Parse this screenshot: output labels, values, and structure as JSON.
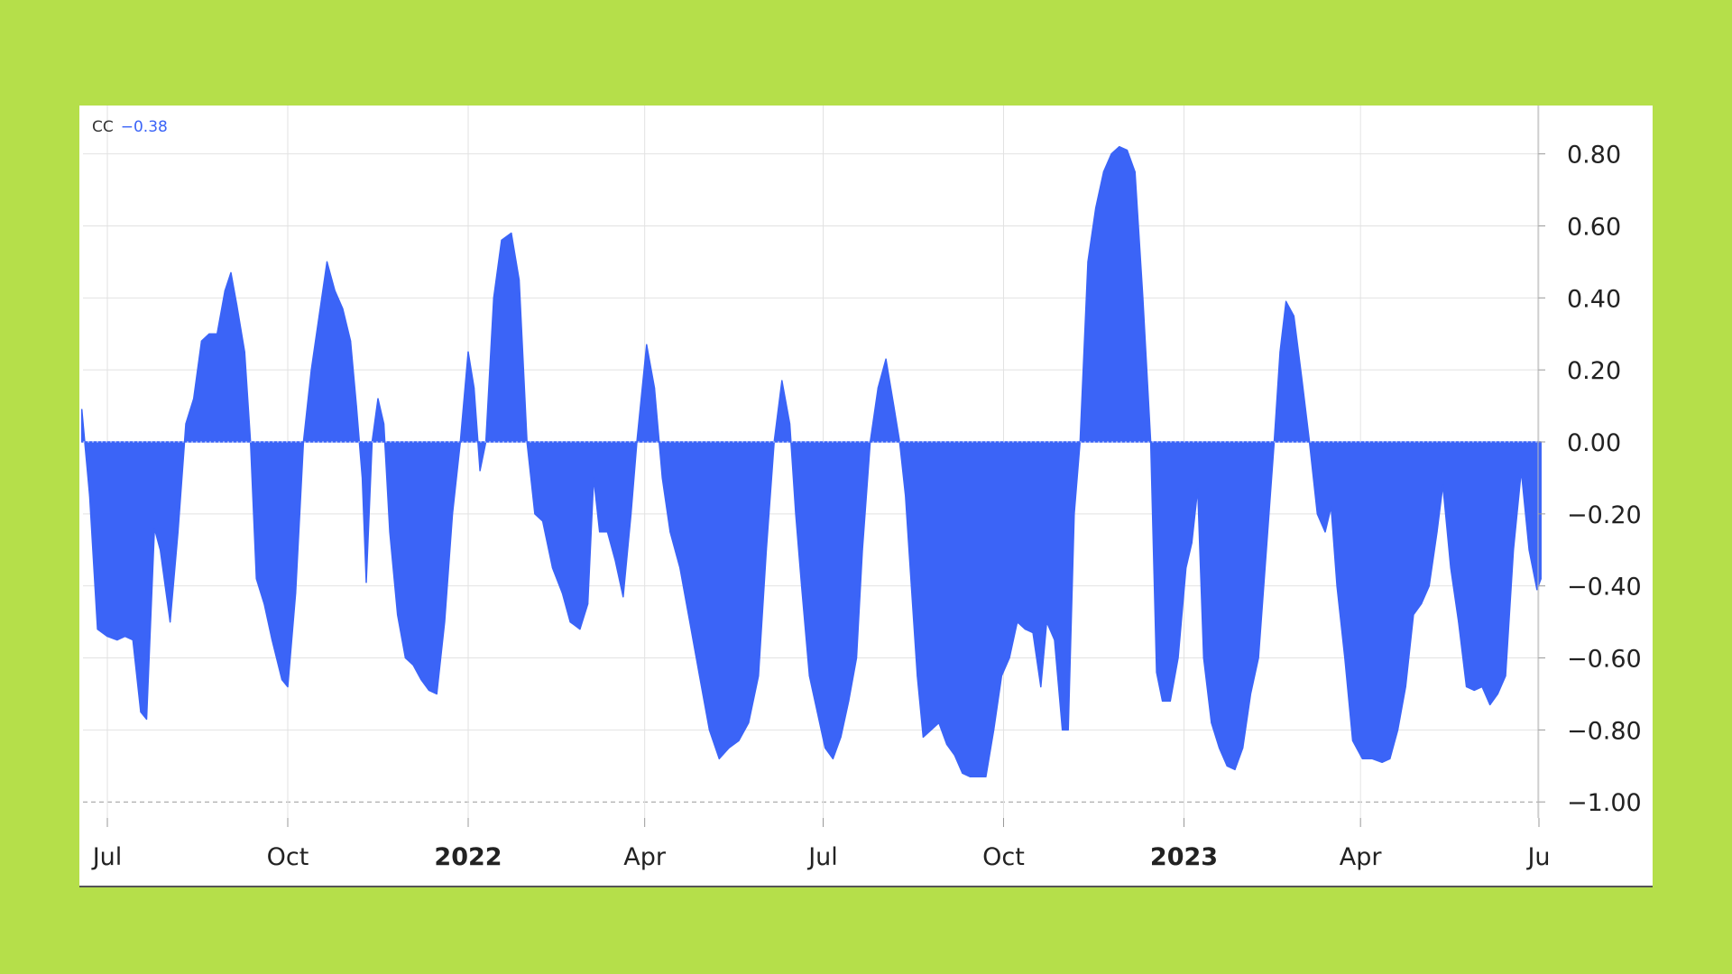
{
  "legend": {
    "name": "CC",
    "value": "−0.38"
  },
  "chart_data": {
    "type": "area",
    "ylim": [
      -1.0,
      0.9
    ],
    "grid": true,
    "y_ticks": [
      {
        "value": 0.8,
        "label": "0.80"
      },
      {
        "value": 0.6,
        "label": "0.60"
      },
      {
        "value": 0.4,
        "label": "0.40"
      },
      {
        "value": 0.2,
        "label": "0.20"
      },
      {
        "value": 0.0,
        "label": "0.00"
      },
      {
        "value": -0.2,
        "label": "−0.20"
      },
      {
        "value": -0.4,
        "label": "−0.40"
      },
      {
        "value": -0.6,
        "label": "−0.60"
      },
      {
        "value": -0.8,
        "label": "−0.80"
      },
      {
        "value": -1.0,
        "label": "−1.00"
      }
    ],
    "x_ticks": [
      {
        "date": "2021-07-01",
        "label": "Jul",
        "bold": false
      },
      {
        "date": "2021-10-01",
        "label": "Oct",
        "bold": false
      },
      {
        "date": "2022-01-01",
        "label": "2022",
        "bold": true
      },
      {
        "date": "2022-04-01",
        "label": "Apr",
        "bold": false
      },
      {
        "date": "2022-07-01",
        "label": "Jul",
        "bold": false
      },
      {
        "date": "2022-10-01",
        "label": "Oct",
        "bold": false
      },
      {
        "date": "2023-01-01",
        "label": "2023",
        "bold": true
      },
      {
        "date": "2023-04-01",
        "label": "Apr",
        "bold": false
      },
      {
        "date": "2023-07-01",
        "label": "Ju",
        "bold": false
      }
    ],
    "series": [
      {
        "color": "#3b64f7",
        "points": [
          [
            "2021-06-18",
            0.09
          ],
          [
            "2021-06-22",
            -0.15
          ],
          [
            "2021-06-26",
            -0.52
          ],
          [
            "2021-07-01",
            -0.54
          ],
          [
            "2021-07-06",
            -0.55
          ],
          [
            "2021-07-10",
            -0.54
          ],
          [
            "2021-07-14",
            -0.55
          ],
          [
            "2021-07-18",
            -0.75
          ],
          [
            "2021-07-21",
            -0.77
          ],
          [
            "2021-07-25",
            -0.24
          ],
          [
            "2021-07-28",
            -0.3
          ],
          [
            "2021-08-02",
            -0.5
          ],
          [
            "2021-08-06",
            -0.25
          ],
          [
            "2021-08-10",
            0.05
          ],
          [
            "2021-08-14",
            0.12
          ],
          [
            "2021-08-18",
            0.28
          ],
          [
            "2021-08-22",
            0.3
          ],
          [
            "2021-08-26",
            0.3
          ],
          [
            "2021-08-30",
            0.42
          ],
          [
            "2021-09-02",
            0.47
          ],
          [
            "2021-09-05",
            0.38
          ],
          [
            "2021-09-09",
            0.25
          ],
          [
            "2021-09-12",
            0.0
          ],
          [
            "2021-09-15",
            -0.38
          ],
          [
            "2021-09-19",
            -0.45
          ],
          [
            "2021-09-23",
            -0.55
          ],
          [
            "2021-09-28",
            -0.66
          ],
          [
            "2021-10-01",
            -0.68
          ],
          [
            "2021-10-05",
            -0.42
          ],
          [
            "2021-10-09",
            0.0
          ],
          [
            "2021-10-13",
            0.2
          ],
          [
            "2021-10-17",
            0.35
          ],
          [
            "2021-10-21",
            0.5
          ],
          [
            "2021-10-25",
            0.42
          ],
          [
            "2021-10-29",
            0.37
          ],
          [
            "2021-11-02",
            0.28
          ],
          [
            "2021-11-05",
            0.1
          ],
          [
            "2021-11-08",
            -0.1
          ],
          [
            "2021-11-10",
            -0.39
          ],
          [
            "2021-11-13",
            0.0
          ],
          [
            "2021-11-16",
            0.12
          ],
          [
            "2021-11-19",
            0.05
          ],
          [
            "2021-11-22",
            -0.25
          ],
          [
            "2021-11-26",
            -0.48
          ],
          [
            "2021-11-30",
            -0.6
          ],
          [
            "2021-12-04",
            -0.62
          ],
          [
            "2021-12-08",
            -0.66
          ],
          [
            "2021-12-12",
            -0.69
          ],
          [
            "2021-12-16",
            -0.7
          ],
          [
            "2021-12-20",
            -0.5
          ],
          [
            "2021-12-24",
            -0.2
          ],
          [
            "2021-12-28",
            0.0
          ],
          [
            "2022-01-01",
            0.25
          ],
          [
            "2022-01-04",
            0.15
          ],
          [
            "2022-01-07",
            -0.08
          ],
          [
            "2022-01-10",
            0.0
          ],
          [
            "2022-01-14",
            0.4
          ],
          [
            "2022-01-18",
            0.56
          ],
          [
            "2022-01-23",
            0.58
          ],
          [
            "2022-01-27",
            0.45
          ],
          [
            "2022-01-31",
            0.0
          ],
          [
            "2022-02-04",
            -0.2
          ],
          [
            "2022-02-08",
            -0.22
          ],
          [
            "2022-02-13",
            -0.35
          ],
          [
            "2022-02-18",
            -0.42
          ],
          [
            "2022-02-22",
            -0.5
          ],
          [
            "2022-02-27",
            -0.52
          ],
          [
            "2022-03-03",
            -0.45
          ],
          [
            "2022-03-06",
            -0.1
          ],
          [
            "2022-03-09",
            -0.25
          ],
          [
            "2022-03-13",
            -0.25
          ],
          [
            "2022-03-17",
            -0.33
          ],
          [
            "2022-03-21",
            -0.43
          ],
          [
            "2022-03-25",
            -0.2
          ],
          [
            "2022-03-28",
            0.0
          ],
          [
            "2022-04-02",
            0.27
          ],
          [
            "2022-04-06",
            0.15
          ],
          [
            "2022-04-10",
            -0.1
          ],
          [
            "2022-04-14",
            -0.25
          ],
          [
            "2022-04-19",
            -0.35
          ],
          [
            "2022-04-24",
            -0.5
          ],
          [
            "2022-04-29",
            -0.65
          ],
          [
            "2022-05-04",
            -0.8
          ],
          [
            "2022-05-09",
            -0.88
          ],
          [
            "2022-05-14",
            -0.85
          ],
          [
            "2022-05-19",
            -0.83
          ],
          [
            "2022-05-24",
            -0.78
          ],
          [
            "2022-05-29",
            -0.65
          ],
          [
            "2022-06-02",
            -0.3
          ],
          [
            "2022-06-06",
            0.0
          ],
          [
            "2022-06-10",
            0.17
          ],
          [
            "2022-06-14",
            0.05
          ],
          [
            "2022-06-17",
            -0.2
          ],
          [
            "2022-06-20",
            -0.4
          ],
          [
            "2022-06-24",
            -0.65
          ],
          [
            "2022-06-28",
            -0.75
          ],
          [
            "2022-07-02",
            -0.85
          ],
          [
            "2022-07-06",
            -0.88
          ],
          [
            "2022-07-10",
            -0.82
          ],
          [
            "2022-07-14",
            -0.72
          ],
          [
            "2022-07-18",
            -0.6
          ],
          [
            "2022-07-21",
            -0.3
          ],
          [
            "2022-07-25",
            0.0
          ],
          [
            "2022-07-29",
            0.15
          ],
          [
            "2022-08-02",
            0.23
          ],
          [
            "2022-08-06",
            0.1
          ],
          [
            "2022-08-09",
            0.0
          ],
          [
            "2022-08-12",
            -0.15
          ],
          [
            "2022-08-15",
            -0.4
          ],
          [
            "2022-08-18",
            -0.65
          ],
          [
            "2022-08-21",
            -0.82
          ],
          [
            "2022-08-25",
            -0.8
          ],
          [
            "2022-08-29",
            -0.78
          ],
          [
            "2022-09-02",
            -0.84
          ],
          [
            "2022-09-06",
            -0.87
          ],
          [
            "2022-09-10",
            -0.92
          ],
          [
            "2022-09-14",
            -0.93
          ],
          [
            "2022-09-18",
            -0.93
          ],
          [
            "2022-09-22",
            -0.93
          ],
          [
            "2022-09-26",
            -0.8
          ],
          [
            "2022-09-30",
            -0.65
          ],
          [
            "2022-10-04",
            -0.6
          ],
          [
            "2022-10-08",
            -0.5
          ],
          [
            "2022-10-12",
            -0.52
          ],
          [
            "2022-10-16",
            -0.53
          ],
          [
            "2022-10-20",
            -0.68
          ],
          [
            "2022-10-23",
            -0.5
          ],
          [
            "2022-10-27",
            -0.55
          ],
          [
            "2022-10-31",
            -0.8
          ],
          [
            "2022-11-03",
            -0.8
          ],
          [
            "2022-11-06",
            -0.2
          ],
          [
            "2022-11-09",
            0.0
          ],
          [
            "2022-11-13",
            0.5
          ],
          [
            "2022-11-17",
            0.65
          ],
          [
            "2022-11-21",
            0.75
          ],
          [
            "2022-11-25",
            0.8
          ],
          [
            "2022-11-29",
            0.82
          ],
          [
            "2022-12-03",
            0.81
          ],
          [
            "2022-12-07",
            0.75
          ],
          [
            "2022-12-11",
            0.4
          ],
          [
            "2022-12-15",
            0.0
          ],
          [
            "2022-12-18",
            -0.64
          ],
          [
            "2022-12-21",
            -0.72
          ],
          [
            "2022-12-25",
            -0.72
          ],
          [
            "2022-12-29",
            -0.6
          ],
          [
            "2023-01-02",
            -0.35
          ],
          [
            "2023-01-05",
            -0.28
          ],
          [
            "2023-01-08",
            -0.13
          ],
          [
            "2023-01-11",
            -0.6
          ],
          [
            "2023-01-15",
            -0.78
          ],
          [
            "2023-01-19",
            -0.85
          ],
          [
            "2023-01-23",
            -0.9
          ],
          [
            "2023-01-27",
            -0.91
          ],
          [
            "2023-01-31",
            -0.85
          ],
          [
            "2023-02-04",
            -0.7
          ],
          [
            "2023-02-08",
            -0.6
          ],
          [
            "2023-02-12",
            -0.3
          ],
          [
            "2023-02-16",
            0.0
          ],
          [
            "2023-02-19",
            0.25
          ],
          [
            "2023-02-22",
            0.39
          ],
          [
            "2023-02-26",
            0.35
          ],
          [
            "2023-03-02",
            0.18
          ],
          [
            "2023-03-06",
            0.0
          ],
          [
            "2023-03-10",
            -0.2
          ],
          [
            "2023-03-14",
            -0.25
          ],
          [
            "2023-03-17",
            -0.18
          ],
          [
            "2023-03-20",
            -0.4
          ],
          [
            "2023-03-24",
            -0.6
          ],
          [
            "2023-03-28",
            -0.83
          ],
          [
            "2023-04-02",
            -0.88
          ],
          [
            "2023-04-07",
            -0.88
          ],
          [
            "2023-04-12",
            -0.89
          ],
          [
            "2023-04-16",
            -0.88
          ],
          [
            "2023-04-20",
            -0.8
          ],
          [
            "2023-04-24",
            -0.68
          ],
          [
            "2023-04-28",
            -0.48
          ],
          [
            "2023-05-02",
            -0.45
          ],
          [
            "2023-05-06",
            -0.4
          ],
          [
            "2023-05-10",
            -0.25
          ],
          [
            "2023-05-13",
            -0.12
          ],
          [
            "2023-05-17",
            -0.35
          ],
          [
            "2023-05-21",
            -0.5
          ],
          [
            "2023-05-25",
            -0.68
          ],
          [
            "2023-05-29",
            -0.69
          ],
          [
            "2023-06-02",
            -0.68
          ],
          [
            "2023-06-06",
            -0.73
          ],
          [
            "2023-06-10",
            -0.7
          ],
          [
            "2023-06-14",
            -0.65
          ],
          [
            "2023-06-18",
            -0.3
          ],
          [
            "2023-06-22",
            -0.08
          ],
          [
            "2023-06-26",
            -0.3
          ],
          [
            "2023-06-30",
            -0.41
          ],
          [
            "2023-07-02",
            -0.38
          ]
        ]
      }
    ]
  }
}
